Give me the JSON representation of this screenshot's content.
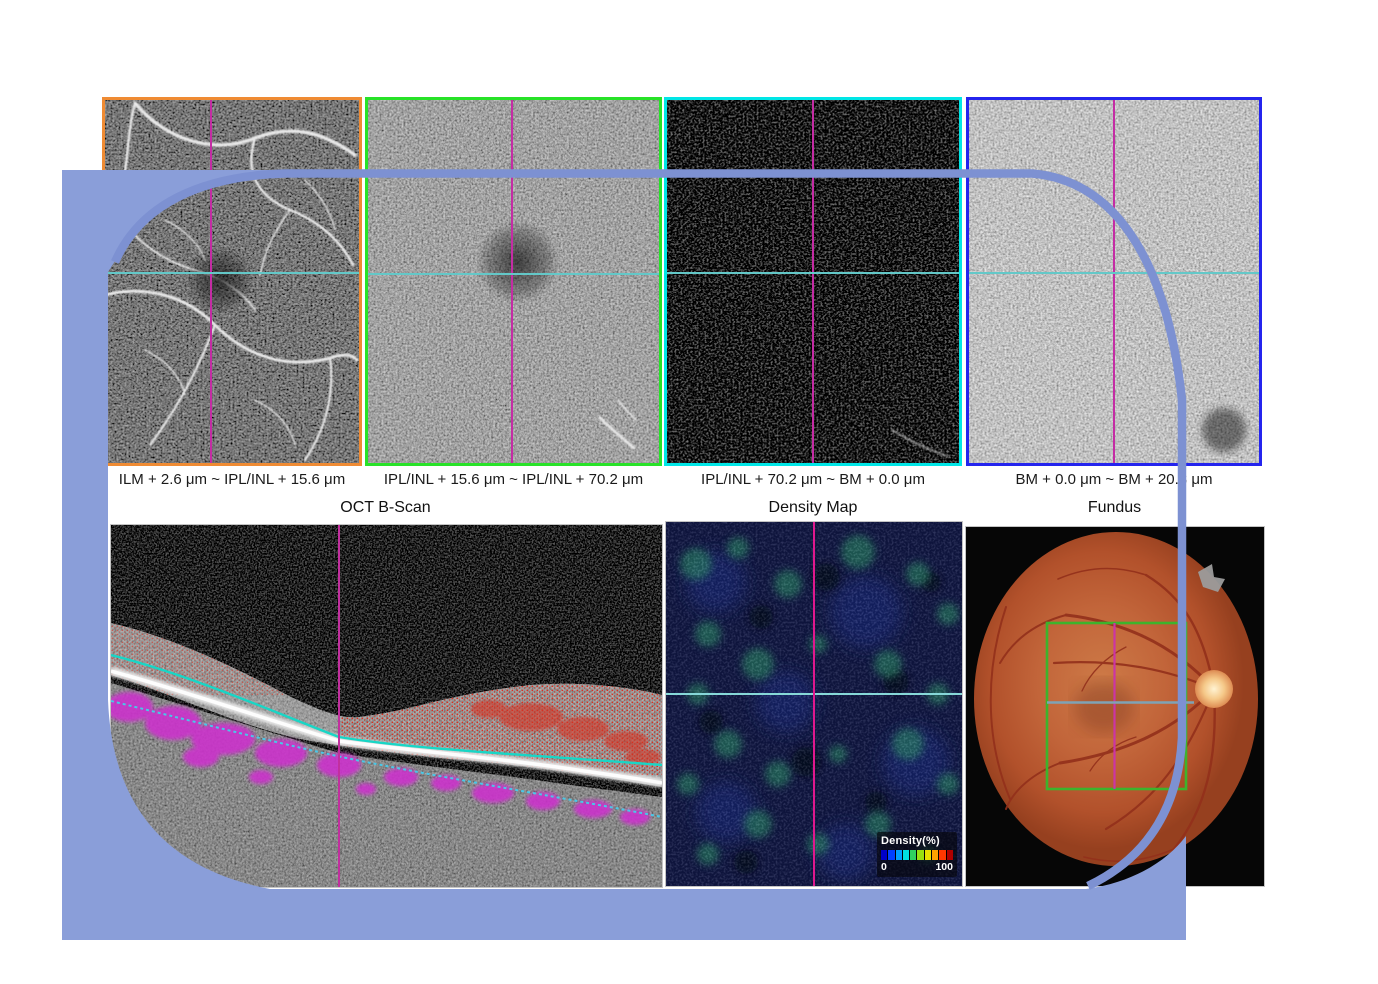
{
  "slabs": [
    {
      "label": "ILM + 2.6 μm ~ IPL/INL + 15.6 μm",
      "border_color": "#ef8b33"
    },
    {
      "label": "IPL/INL + 15.6 μm ~ IPL/INL + 70.2 μm",
      "border_color": "#28e228"
    },
    {
      "label": "IPL/INL + 70.2 μm ~ BM + 0.0 μm",
      "border_color": "#00e6e6"
    },
    {
      "label": "BM + 0.0 μm ~ BM + 20.8 μm",
      "border_color": "#2424ee"
    }
  ],
  "panels": {
    "bscan": {
      "title": "OCT B-Scan"
    },
    "density": {
      "title": "Density Map",
      "legend": {
        "title": "Density(%)",
        "min": "0",
        "max": "100",
        "gradient": [
          "#0000c8",
          "#0040ff",
          "#00a0ff",
          "#00e0e0",
          "#30d060",
          "#98e010",
          "#e8e000",
          "#ffa000",
          "#ff3800",
          "#b00000"
        ]
      }
    },
    "fundus": {
      "title": "Fundus"
    }
  },
  "colors": {
    "decor_fill": "#8a9ed9",
    "decor_stroke": "#7d91d2",
    "crosshair_vertical": "#c42ca4",
    "crosshair_horizontal": "#63c8c8",
    "bscan_cursor": "#c22f9e",
    "bscan_segmentation": "#18d6c6",
    "density_cursor": "#e0188e",
    "density_hline": "#86d8d8",
    "roi_green": "#3db32c",
    "fundus_line": "#7fa3b5"
  }
}
